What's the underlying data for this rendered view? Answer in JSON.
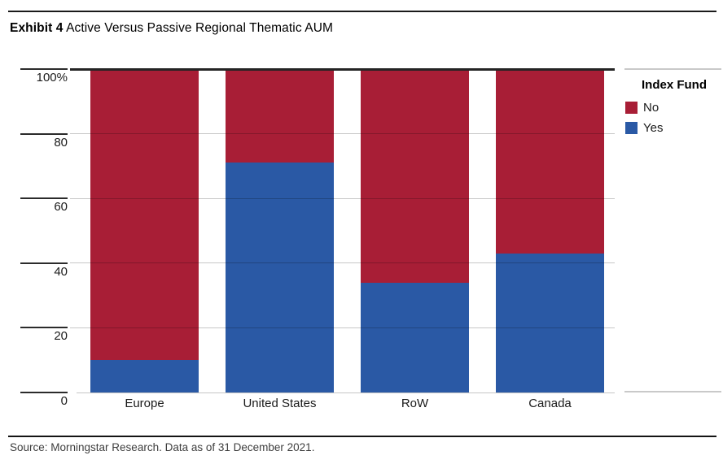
{
  "header": {
    "exhibit_label": "Exhibit 4",
    "title": "Active Versus Passive Regional Thematic AUM"
  },
  "legend": {
    "title": "Index Fund",
    "items": [
      {
        "label": "No",
        "color": "#A81E36"
      },
      {
        "label": "Yes",
        "color": "#2A59A5"
      }
    ]
  },
  "footer": {
    "source": "Source: Morningstar Research. Data as of 31 December 2021."
  },
  "colors": {
    "no": "#A81E36",
    "yes": "#2A59A5",
    "grid": "rgba(0,0,0,0.22)",
    "axis_dark": "#242424",
    "axis_light": "#C6C6C6"
  },
  "chart_data": {
    "type": "bar",
    "stacked": true,
    "title": "Exhibit 4 Active Versus Passive Regional Thematic AUM",
    "units": "percent of AUM",
    "categories": [
      "Europe",
      "United States",
      "RoW",
      "Canada"
    ],
    "series": [
      {
        "name": "No",
        "color": "#A81E36",
        "values": [
          90,
          29,
          66,
          57
        ]
      },
      {
        "name": "Yes",
        "color": "#2A59A5",
        "values": [
          10,
          71,
          34,
          43
        ]
      }
    ],
    "ylim": [
      0,
      100
    ],
    "yticks": [
      {
        "value": 100,
        "label": "100%"
      },
      {
        "value": 80,
        "label": "80"
      },
      {
        "value": 60,
        "label": "60"
      },
      {
        "value": 40,
        "label": "40"
      },
      {
        "value": 20,
        "label": "20"
      },
      {
        "value": 0,
        "label": "0"
      }
    ],
    "grid": true,
    "legend_title": "Index Fund",
    "legend_position": "right"
  }
}
